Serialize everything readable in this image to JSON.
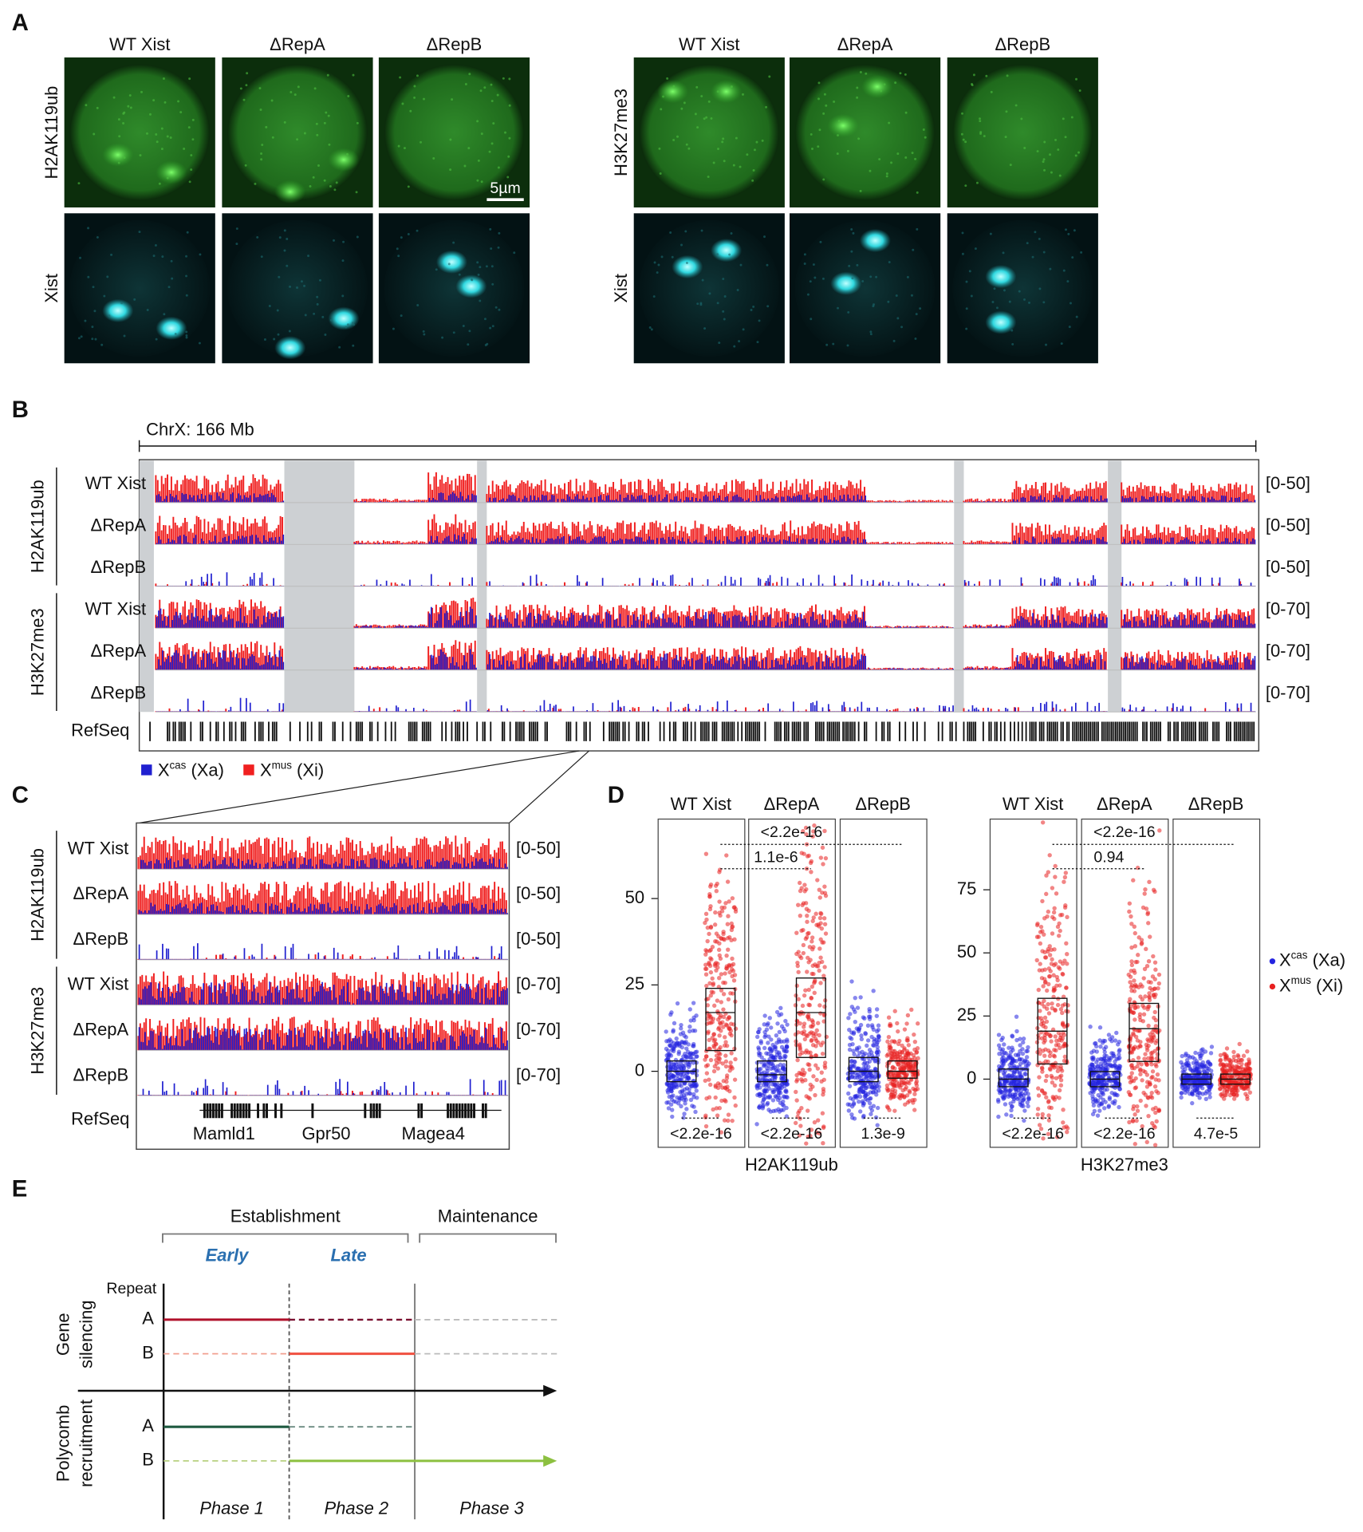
{
  "panels": {
    "a": {
      "label": "A",
      "scale_bar": "5µm",
      "groups": [
        {
          "columns": [
            "WT Xist",
            "ΔRepA",
            "ΔRepB"
          ],
          "rows": [
            "H2AK119ub",
            "Xist"
          ]
        },
        {
          "columns": [
            "WT Xist",
            "ΔRepA",
            "ΔRepB"
          ],
          "rows": [
            "H3K27me3",
            "Xist"
          ]
        }
      ]
    },
    "b": {
      "label": "B",
      "ruler": "ChrX: 166 Mb",
      "refseq": "RefSeq",
      "groups": [
        {
          "mark": "H2AK119ub",
          "tracks": [
            {
              "name": "WT Xist",
              "range": "[0-50]"
            },
            {
              "name": "ΔRepA",
              "range": "[0-50]"
            },
            {
              "name": "ΔRepB",
              "range": "[0-50]"
            }
          ]
        },
        {
          "mark": "H3K27me3",
          "tracks": [
            {
              "name": "WT Xist",
              "range": "[0-70]"
            },
            {
              "name": "ΔRepA",
              "range": "[0-70]"
            },
            {
              "name": "ΔRepB",
              "range": "[0-70]"
            }
          ]
        }
      ],
      "legend": [
        {
          "base": "X",
          "sup": "cas",
          "suffix": " (Xa)"
        },
        {
          "base": "X",
          "sup": "mus",
          "suffix": " (Xi)"
        }
      ]
    },
    "c": {
      "label": "C",
      "refseq": "RefSeq",
      "genes": [
        "Mamld1",
        "Gpr50",
        "Magea4"
      ],
      "groups": [
        {
          "mark": "H2AK119ub",
          "tracks": [
            {
              "name": "WT Xist",
              "range": "[0-50]"
            },
            {
              "name": "ΔRepA",
              "range": "[0-50]"
            },
            {
              "name": "ΔRepB",
              "range": "[0-50]"
            }
          ]
        },
        {
          "mark": "H3K27me3",
          "tracks": [
            {
              "name": "WT Xist",
              "range": "[0-70]"
            },
            {
              "name": "ΔRepA",
              "range": "[0-70]"
            },
            {
              "name": "ΔRepB",
              "range": "[0-70]"
            }
          ]
        }
      ]
    },
    "d": {
      "label": "D",
      "legend": [
        {
          "base": "X",
          "sup": "cas",
          "suffix": " (Xa)"
        },
        {
          "base": "X",
          "sup": "mus",
          "suffix": " (Xi)"
        }
      ],
      "plots": [
        {
          "title": "H2AK119ub",
          "ylim": [
            -22,
            73
          ],
          "yticks": [
            0,
            25,
            50
          ],
          "comparisons_top": [
            "<2.2e-16",
            "1.1e-6"
          ],
          "pvalues_bottom": [
            "<2.2e-16",
            "<2.2e-16",
            "1.3e-9"
          ],
          "groups": [
            {
              "name": "WT Xist",
              "xcas": {
                "q1": -3,
                "median": 0,
                "q3": 3
              },
              "xmus": {
                "q1": 6,
                "median": 17,
                "q3": 24
              }
            },
            {
              "name": "ΔRepA",
              "xcas": {
                "q1": -3,
                "median": -1,
                "q3": 3
              },
              "xmus": {
                "q1": 4,
                "median": 17,
                "q3": 27
              }
            },
            {
              "name": "ΔRepB",
              "xcas": {
                "q1": -3,
                "median": 0,
                "q3": 4
              },
              "xmus": {
                "q1": -2,
                "median": 0,
                "q3": 3
              }
            }
          ]
        },
        {
          "title": "H3K27me3",
          "ylim": [
            -27,
            103
          ],
          "yticks": [
            0,
            25,
            50,
            75
          ],
          "comparisons_top": [
            "<2.2e-16",
            "0.94"
          ],
          "pvalues_bottom": [
            "<2.2e-16",
            "<2.2e-16",
            "4.7e-5"
          ],
          "groups": [
            {
              "name": "WT Xist",
              "xcas": {
                "q1": -3,
                "median": 0,
                "q3": 4
              },
              "xmus": {
                "q1": 6,
                "median": 19,
                "q3": 32
              }
            },
            {
              "name": "ΔRepA",
              "xcas": {
                "q1": -3,
                "median": 0,
                "q3": 3
              },
              "xmus": {
                "q1": 7,
                "median": 20,
                "q3": 30
              }
            },
            {
              "name": "ΔRepB",
              "xcas": {
                "q1": -2,
                "median": 0,
                "q3": 2
              },
              "xmus": {
                "q1": -2,
                "median": 0,
                "q3": 2
              }
            }
          ]
        }
      ]
    },
    "e": {
      "label": "E",
      "establishment": "Establishment",
      "maintenance": "Maintenance",
      "early": "Early",
      "late": "Late",
      "repeat": "Repeat",
      "gene_silencing": [
        "Gene",
        "silencing"
      ],
      "polycomb": [
        "Polycomb",
        "recruitment"
      ],
      "silencing_rows": [
        "A",
        "B"
      ],
      "polycomb_rows": [
        "A",
        "B"
      ],
      "phases": [
        "Phase 1",
        "Phase 2",
        "Phase 3"
      ]
    }
  }
}
